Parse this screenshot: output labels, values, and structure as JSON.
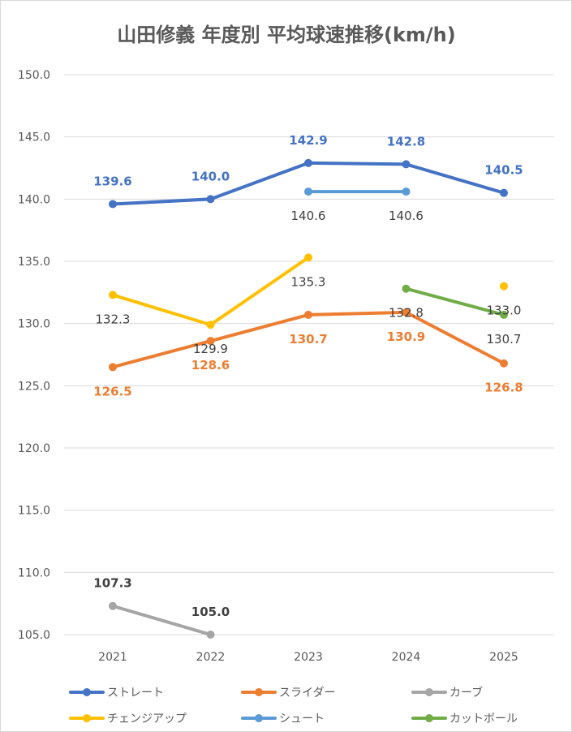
{
  "chart_data": {
    "type": "line",
    "title": "山田修義 年度別 平均球速推移(km/h)",
    "categories": [
      "2021",
      "2022",
      "2023",
      "2024",
      "2025"
    ],
    "ylim": [
      105.0,
      150.0
    ],
    "y_ticks": [
      "105.0",
      "110.0",
      "115.0",
      "120.0",
      "125.0",
      "130.0",
      "135.0",
      "140.0",
      "145.0",
      "150.0"
    ],
    "grid": "horizontal",
    "legend_position": "bottom",
    "series": [
      {
        "name": "ストレート",
        "color": "#4472c4",
        "label_style": "bold-colored",
        "values": [
          139.6,
          140.0,
          142.9,
          142.8,
          140.5
        ],
        "labels": [
          "139.6",
          "140.0",
          "142.9",
          "142.8",
          "140.5"
        ],
        "label_position": "above"
      },
      {
        "name": "スライダー",
        "color": "#ed7d31",
        "label_style": "bold-colored",
        "values": [
          126.5,
          128.6,
          130.7,
          130.9,
          126.8
        ],
        "labels": [
          "126.5",
          "128.6",
          "130.7",
          "130.9",
          "126.8"
        ],
        "label_position": "below"
      },
      {
        "name": "カーブ",
        "color": "#a5a5a5",
        "label_style": "bold-dark",
        "values": [
          107.3,
          105.0,
          null,
          null,
          null
        ],
        "labels": [
          "107.3",
          "105.0",
          null,
          null,
          null
        ],
        "label_position": "above"
      },
      {
        "name": "チェンジアップ",
        "color": "#ffc000",
        "label_style": "normal-dark",
        "values": [
          132.3,
          129.9,
          135.3,
          null,
          133.0
        ],
        "labels": [
          "132.3",
          "129.9",
          "135.3",
          null,
          "133.0"
        ],
        "label_position": "below"
      },
      {
        "name": "シュート",
        "color": "#5b9bd5",
        "label_style": "normal-dark",
        "values": [
          null,
          null,
          140.6,
          140.6,
          null
        ],
        "labels": [
          null,
          null,
          "140.6",
          "140.6",
          null
        ],
        "label_position": "below"
      },
      {
        "name": "カットボール",
        "color": "#70ad47",
        "label_style": "normal-dark",
        "values": [
          null,
          null,
          null,
          132.8,
          130.7
        ],
        "labels": [
          null,
          null,
          null,
          "132.8",
          "130.7"
        ],
        "label_position": "below"
      }
    ]
  }
}
